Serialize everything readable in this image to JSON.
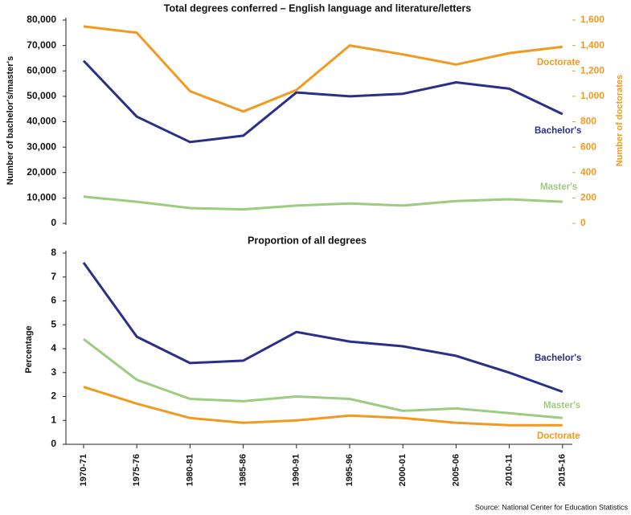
{
  "chart_data": [
    {
      "type": "line",
      "title": "Total degrees conferred – English language and literature/letters",
      "ylabel": "Number of bachelor's/master's",
      "y2label": "Number of doctorates",
      "ylim": [
        0,
        80000
      ],
      "yticks": [
        0,
        {
          "value": 10000,
          "label": "10,000"
        },
        {
          "value": 20000,
          "label": "20,000"
        },
        {
          "value": 30000,
          "label": "30,000"
        },
        {
          "value": 40000,
          "label": "40,000"
        },
        {
          "value": 50000,
          "label": "50,000"
        },
        {
          "value": 60000,
          "label": "60,000"
        },
        {
          "value": 70000,
          "label": "70,000"
        },
        {
          "value": 80000,
          "label": "80,000"
        }
      ],
      "y2lim": [
        0,
        1600
      ],
      "y2ticks": [
        0,
        200,
        400,
        600,
        800,
        {
          "value": 1000,
          "label": "1,000"
        },
        {
          "value": 1200,
          "label": "1,200"
        },
        {
          "value": 1400,
          "label": "1,400"
        },
        {
          "value": 1600,
          "label": "1,600"
        }
      ],
      "y2color": "#f29a1f",
      "series": [
        {
          "name": "Bachelor's",
          "color": "#2b2f8a",
          "values": [
            64000,
            42000,
            32000,
            34500,
            51500,
            50000,
            51000,
            55500,
            53000,
            43000
          ]
        },
        {
          "name": "Master's",
          "color": "#9ccc7f",
          "values": [
            10500,
            8500,
            6000,
            5500,
            7000,
            7800,
            7000,
            8800,
            9500,
            8500
          ]
        },
        {
          "name": "Doctorate",
          "color": "#f29a1f",
          "axis": "y2",
          "values": [
            1550,
            1500,
            1040,
            880,
            1050,
            1400,
            1330,
            1250,
            1340,
            1390
          ]
        }
      ]
    },
    {
      "type": "line",
      "title": "Proportion of all degrees",
      "ylabel": "Percentage",
      "categories": [
        "1970-71",
        "1975-76",
        "1980-81",
        "1985-86",
        "1990-91",
        "1995-96",
        "2000-01",
        "2005-06",
        "2010-11",
        "2015-16"
      ],
      "ylim": [
        0,
        8
      ],
      "yticks": [
        0,
        1,
        2,
        3,
        4,
        5,
        6,
        7,
        8
      ],
      "series": [
        {
          "name": "Bachelor's",
          "color": "#2b2f8a",
          "values": [
            7.6,
            4.5,
            3.4,
            3.5,
            4.7,
            4.3,
            4.1,
            3.7,
            3.0,
            2.2
          ]
        },
        {
          "name": "Master's",
          "color": "#9ccc7f",
          "values": [
            4.4,
            2.7,
            1.9,
            1.8,
            2.0,
            1.9,
            1.4,
            1.5,
            1.3,
            1.1
          ]
        },
        {
          "name": "Doctorate",
          "color": "#f29a1f",
          "values": [
            2.4,
            1.7,
            1.1,
            0.9,
            1.0,
            1.2,
            1.1,
            0.9,
            0.8,
            0.8
          ]
        }
      ]
    }
  ],
  "source": "Source: National Center for Education Statistics"
}
